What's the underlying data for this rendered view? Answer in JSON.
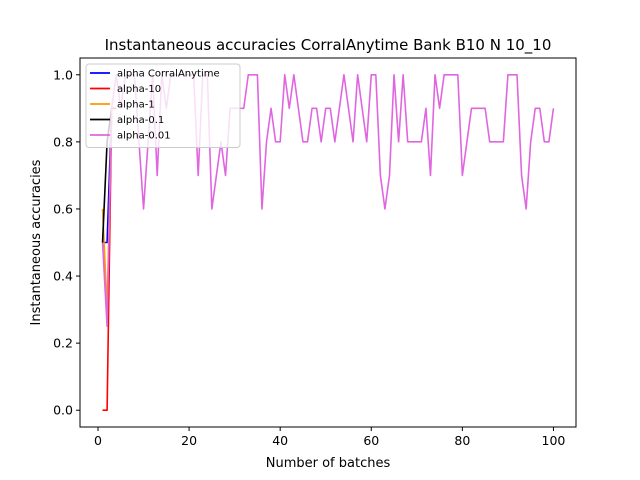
{
  "chart_data": {
    "type": "line",
    "title": "Instantaneous accuracies CorralAnytime Bank B10 N 10_10",
    "xlabel": "Number of batches",
    "ylabel": "Instantaneous accuracies",
    "xlim": [
      -3.95,
      104.95
    ],
    "ylim": [
      -0.05,
      1.05
    ],
    "xticks": [
      0,
      20,
      40,
      60,
      80,
      100
    ],
    "xtick_labels": [
      "0",
      "20",
      "40",
      "60",
      "80",
      "100"
    ],
    "yticks": [
      0.0,
      0.2,
      0.4,
      0.6,
      0.8,
      1.0
    ],
    "ytick_labels": [
      "0.0",
      "0.2",
      "0.4",
      "0.6",
      "0.8",
      "1.0"
    ],
    "grid": false,
    "legend_position": "top-left",
    "series": [
      {
        "name": "alpha CorralAnytime",
        "color": "#0000ff",
        "x": [
          1,
          2,
          3
        ],
        "y": [
          0.5,
          0.5,
          0.9
        ]
      },
      {
        "name": "alpha-10",
        "color": "#ff0000",
        "x": [
          1,
          2,
          3,
          4
        ],
        "y": [
          0.0,
          0.0,
          0.9,
          0.9
        ]
      },
      {
        "name": "alpha-1",
        "color": "#ff9900",
        "x": [
          1,
          2,
          3
        ],
        "y": [
          0.6,
          0.3,
          0.9
        ]
      },
      {
        "name": "alpha-0.1",
        "color": "#000000",
        "x": [
          1,
          2,
          3
        ],
        "y": [
          0.5,
          0.8,
          0.9
        ]
      },
      {
        "name": "alpha-0.01",
        "color": "#e066e0",
        "x": [
          1,
          2,
          3,
          4,
          5,
          6,
          7,
          8,
          9,
          10,
          11,
          12,
          13,
          14,
          15,
          16,
          17,
          18,
          19,
          20,
          21,
          22,
          23,
          24,
          25,
          26,
          27,
          28,
          29,
          30,
          31,
          32,
          33,
          34,
          35,
          36,
          37,
          38,
          39,
          40,
          41,
          42,
          43,
          44,
          45,
          46,
          47,
          48,
          49,
          50,
          51,
          52,
          53,
          54,
          55,
          56,
          57,
          58,
          59,
          60,
          61,
          62,
          63,
          64,
          65,
          66,
          67,
          68,
          69,
          70,
          71,
          72,
          73,
          74,
          75,
          76,
          77,
          78,
          79,
          80,
          81,
          82,
          83,
          84,
          85,
          86,
          87,
          88,
          89,
          90,
          91,
          92,
          93,
          94,
          95,
          96,
          97,
          98,
          99,
          100
        ],
        "y": [
          0.5,
          0.25,
          0.9,
          1.0,
          0.9,
          1.0,
          1.0,
          1.0,
          0.8,
          0.6,
          0.8,
          1.0,
          0.7,
          1.0,
          0.9,
          1.0,
          1.0,
          1.0,
          1.0,
          1.0,
          1.0,
          0.7,
          1.0,
          1.0,
          0.6,
          0.7,
          0.8,
          0.7,
          0.9,
          0.9,
          0.9,
          0.9,
          1.0,
          1.0,
          1.0,
          0.6,
          0.8,
          0.9,
          0.8,
          0.8,
          1.0,
          0.9,
          1.0,
          0.9,
          0.8,
          0.8,
          0.9,
          0.9,
          0.8,
          0.9,
          0.9,
          0.8,
          0.9,
          1.0,
          0.9,
          0.8,
          1.0,
          0.9,
          0.8,
          1.0,
          1.0,
          0.7,
          0.6,
          0.7,
          1.0,
          0.8,
          1.0,
          0.8,
          0.8,
          0.8,
          0.8,
          0.9,
          0.7,
          1.0,
          0.9,
          1.0,
          1.0,
          1.0,
          1.0,
          0.7,
          0.8,
          0.9,
          0.9,
          0.9,
          0.9,
          0.8,
          0.8,
          0.8,
          0.8,
          1.0,
          1.0,
          1.0,
          0.7,
          0.6,
          0.8,
          0.9,
          0.9,
          0.8,
          0.8,
          0.9
        ]
      }
    ]
  }
}
